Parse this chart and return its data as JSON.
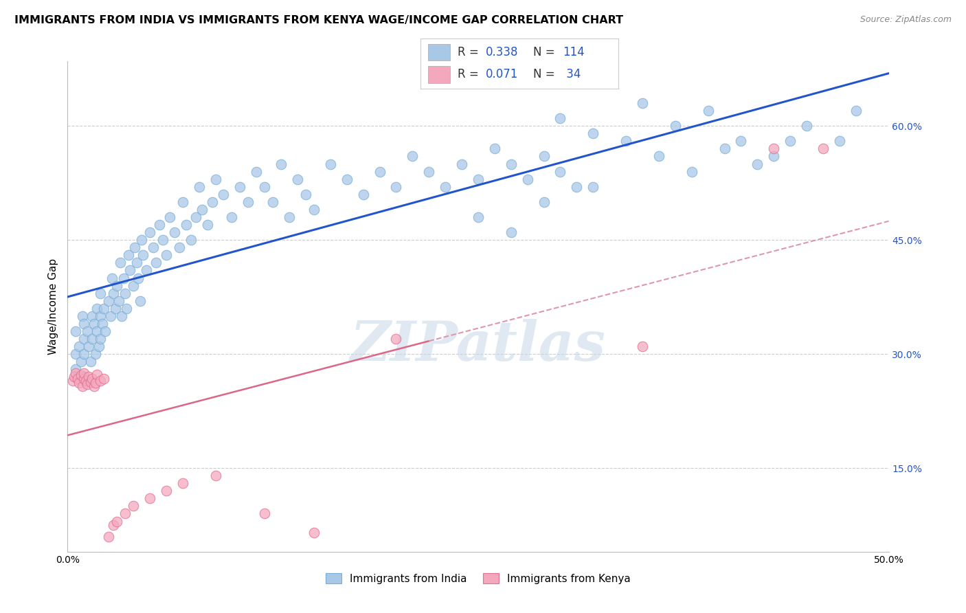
{
  "title": "IMMIGRANTS FROM INDIA VS IMMIGRANTS FROM KENYA WAGE/INCOME GAP CORRELATION CHART",
  "source": "Source: ZipAtlas.com",
  "ylabel": "Wage/Income Gap",
  "xlim": [
    0.0,
    0.5
  ],
  "ylim": [
    0.04,
    0.685
  ],
  "ytick_vals": [
    0.15,
    0.3,
    0.45,
    0.6
  ],
  "ytick_labels": [
    "15.0%",
    "30.0%",
    "45.0%",
    "60.0%"
  ],
  "india_R": 0.338,
  "india_N": 114,
  "kenya_R": 0.071,
  "kenya_N": 34,
  "india_color": "#a8c8e8",
  "india_edge_color": "#7aadd4",
  "kenya_color": "#f4a8be",
  "kenya_edge_color": "#e07090",
  "india_line_color": "#2255cc",
  "kenya_line_color": "#dd6688",
  "kenya_dash_color": "#dd99aa",
  "grid_color": "#cccccc",
  "watermark": "ZIPatlas",
  "background_color": "#ffffff",
  "india_x": [
    0.005,
    0.005,
    0.005,
    0.007,
    0.008,
    0.009,
    0.01,
    0.01,
    0.01,
    0.01,
    0.012,
    0.013,
    0.014,
    0.015,
    0.015,
    0.016,
    0.017,
    0.018,
    0.018,
    0.019,
    0.02,
    0.02,
    0.02,
    0.021,
    0.022,
    0.023,
    0.025,
    0.026,
    0.027,
    0.028,
    0.029,
    0.03,
    0.031,
    0.032,
    0.033,
    0.034,
    0.035,
    0.036,
    0.037,
    0.038,
    0.04,
    0.041,
    0.042,
    0.043,
    0.044,
    0.045,
    0.046,
    0.048,
    0.05,
    0.052,
    0.054,
    0.056,
    0.058,
    0.06,
    0.062,
    0.065,
    0.068,
    0.07,
    0.072,
    0.075,
    0.078,
    0.08,
    0.082,
    0.085,
    0.088,
    0.09,
    0.095,
    0.1,
    0.105,
    0.11,
    0.115,
    0.12,
    0.125,
    0.13,
    0.135,
    0.14,
    0.145,
    0.15,
    0.16,
    0.17,
    0.18,
    0.19,
    0.2,
    0.21,
    0.22,
    0.23,
    0.24,
    0.25,
    0.26,
    0.27,
    0.28,
    0.29,
    0.3,
    0.32,
    0.34,
    0.36,
    0.38,
    0.4,
    0.42,
    0.44,
    0.3,
    0.32,
    0.35,
    0.37,
    0.39,
    0.41,
    0.43,
    0.45,
    0.47,
    0.48,
    0.25,
    0.27,
    0.29,
    0.31
  ],
  "india_y": [
    0.3,
    0.33,
    0.28,
    0.31,
    0.29,
    0.35,
    0.32,
    0.3,
    0.27,
    0.34,
    0.33,
    0.31,
    0.29,
    0.35,
    0.32,
    0.34,
    0.3,
    0.36,
    0.33,
    0.31,
    0.35,
    0.32,
    0.38,
    0.34,
    0.36,
    0.33,
    0.37,
    0.35,
    0.4,
    0.38,
    0.36,
    0.39,
    0.37,
    0.42,
    0.35,
    0.4,
    0.38,
    0.36,
    0.43,
    0.41,
    0.39,
    0.44,
    0.42,
    0.4,
    0.37,
    0.45,
    0.43,
    0.41,
    0.46,
    0.44,
    0.42,
    0.47,
    0.45,
    0.43,
    0.48,
    0.46,
    0.44,
    0.5,
    0.47,
    0.45,
    0.48,
    0.52,
    0.49,
    0.47,
    0.5,
    0.53,
    0.51,
    0.48,
    0.52,
    0.5,
    0.54,
    0.52,
    0.5,
    0.55,
    0.48,
    0.53,
    0.51,
    0.49,
    0.55,
    0.53,
    0.51,
    0.54,
    0.52,
    0.56,
    0.54,
    0.52,
    0.55,
    0.53,
    0.57,
    0.55,
    0.53,
    0.56,
    0.54,
    0.52,
    0.58,
    0.56,
    0.54,
    0.57,
    0.55,
    0.58,
    0.61,
    0.59,
    0.63,
    0.6,
    0.62,
    0.58,
    0.56,
    0.6,
    0.58,
    0.62,
    0.48,
    0.46,
    0.5,
    0.52
  ],
  "kenya_x": [
    0.003,
    0.004,
    0.005,
    0.006,
    0.007,
    0.008,
    0.009,
    0.01,
    0.01,
    0.011,
    0.012,
    0.013,
    0.014,
    0.015,
    0.016,
    0.017,
    0.018,
    0.02,
    0.022,
    0.025,
    0.028,
    0.03,
    0.035,
    0.04,
    0.05,
    0.06,
    0.07,
    0.09,
    0.12,
    0.15,
    0.2,
    0.35,
    0.43,
    0.46
  ],
  "kenya_y": [
    0.265,
    0.27,
    0.275,
    0.268,
    0.262,
    0.272,
    0.258,
    0.268,
    0.275,
    0.265,
    0.26,
    0.27,
    0.263,
    0.268,
    0.258,
    0.262,
    0.273,
    0.265,
    0.268,
    0.06,
    0.075,
    0.08,
    0.09,
    0.1,
    0.11,
    0.12,
    0.13,
    0.14,
    0.09,
    0.065,
    0.32,
    0.31,
    0.57,
    0.57
  ]
}
